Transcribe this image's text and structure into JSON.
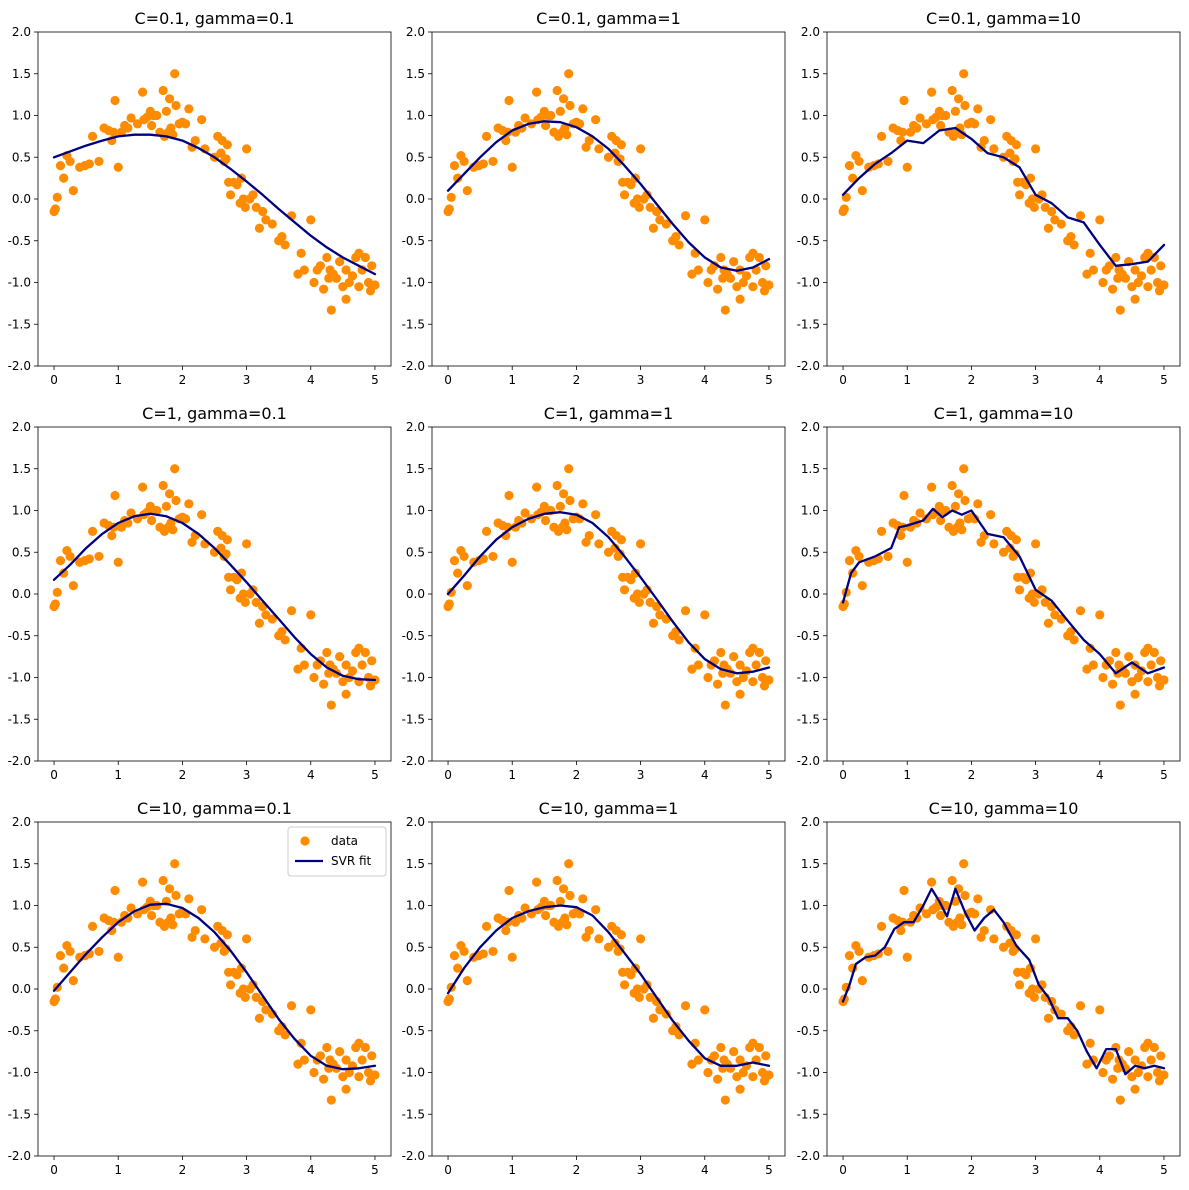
{
  "colors": {
    "data": "#ff8c00",
    "fit": "#000080",
    "axis": "#000000"
  },
  "legend": {
    "data_label": "data",
    "fit_label": "SVR fit",
    "placement": "top-right",
    "panel": 6
  },
  "chart_data": [
    {
      "type": "scatter+line",
      "title": "C=0.1, gamma=0.1",
      "xlim": [
        -0.25,
        5.25
      ],
      "ylim": [
        -2,
        2
      ],
      "xticks": [
        0,
        1,
        2,
        3,
        4,
        5
      ],
      "yticks": [
        -2.0,
        -1.5,
        -1.0,
        -0.5,
        0.0,
        0.5,
        1.0,
        1.5,
        2.0
      ],
      "fit": {
        "x": [
          0,
          0.25,
          0.5,
          0.75,
          1.0,
          1.25,
          1.5,
          1.75,
          2.0,
          2.25,
          2.5,
          2.75,
          3.0,
          3.25,
          3.5,
          3.75,
          4.0,
          4.25,
          4.5,
          4.75,
          5.0
        ],
        "y": [
          0.5,
          0.57,
          0.64,
          0.7,
          0.75,
          0.77,
          0.77,
          0.75,
          0.7,
          0.61,
          0.5,
          0.36,
          0.21,
          0.05,
          -0.12,
          -0.28,
          -0.44,
          -0.58,
          -0.7,
          -0.8,
          -0.9
        ]
      }
    },
    {
      "type": "scatter+line",
      "title": "C=0.1, gamma=1",
      "xlim": [
        -0.25,
        5.25
      ],
      "ylim": [
        -2,
        2
      ],
      "xticks": [
        0,
        1,
        2,
        3,
        4,
        5
      ],
      "yticks": [
        -2.0,
        -1.5,
        -1.0,
        -0.5,
        0.0,
        0.5,
        1.0,
        1.5,
        2.0
      ],
      "fit": {
        "x": [
          0,
          0.25,
          0.5,
          0.75,
          1.0,
          1.25,
          1.5,
          1.75,
          2.0,
          2.25,
          2.5,
          2.75,
          3.0,
          3.25,
          3.5,
          3.75,
          4.0,
          4.25,
          4.5,
          4.75,
          5.0
        ],
        "y": [
          0.1,
          0.3,
          0.5,
          0.68,
          0.82,
          0.9,
          0.93,
          0.92,
          0.86,
          0.75,
          0.6,
          0.4,
          0.18,
          -0.06,
          -0.3,
          -0.52,
          -0.7,
          -0.82,
          -0.86,
          -0.82,
          -0.72
        ]
      }
    },
    {
      "type": "scatter+line",
      "title": "C=0.1, gamma=10",
      "xlim": [
        -0.25,
        5.25
      ],
      "ylim": [
        -2,
        2
      ],
      "xticks": [
        0,
        1,
        2,
        3,
        4,
        5
      ],
      "yticks": [
        -2.0,
        -1.5,
        -1.0,
        -0.5,
        0.0,
        0.5,
        1.0,
        1.5,
        2.0
      ],
      "fit": {
        "x": [
          0,
          0.25,
          0.5,
          0.75,
          1.0,
          1.25,
          1.5,
          1.75,
          2.0,
          2.25,
          2.5,
          2.75,
          3.0,
          3.25,
          3.5,
          3.75,
          4.0,
          4.25,
          4.5,
          4.75,
          5.0
        ],
        "y": [
          0.05,
          0.25,
          0.42,
          0.55,
          0.7,
          0.67,
          0.82,
          0.85,
          0.72,
          0.55,
          0.5,
          0.38,
          0.05,
          -0.05,
          -0.22,
          -0.28,
          -0.55,
          -0.8,
          -0.78,
          -0.75,
          -0.55
        ]
      }
    },
    {
      "type": "scatter+line",
      "title": "C=1, gamma=0.1",
      "xlim": [
        -0.25,
        5.25
      ],
      "ylim": [
        -2,
        2
      ],
      "xticks": [
        0,
        1,
        2,
        3,
        4,
        5
      ],
      "yticks": [
        -2.0,
        -1.5,
        -1.0,
        -0.5,
        0.0,
        0.5,
        1.0,
        1.5,
        2.0
      ],
      "fit": {
        "x": [
          0,
          0.25,
          0.5,
          0.75,
          1.0,
          1.25,
          1.5,
          1.75,
          2.0,
          2.25,
          2.5,
          2.75,
          3.0,
          3.25,
          3.5,
          3.75,
          4.0,
          4.25,
          4.5,
          4.75,
          5.0
        ],
        "y": [
          0.17,
          0.35,
          0.55,
          0.72,
          0.85,
          0.93,
          0.96,
          0.93,
          0.85,
          0.72,
          0.55,
          0.35,
          0.14,
          -0.08,
          -0.3,
          -0.52,
          -0.72,
          -0.88,
          -0.98,
          -1.02,
          -1.03
        ]
      }
    },
    {
      "type": "scatter+line",
      "title": "C=1, gamma=1",
      "xlim": [
        -0.25,
        5.25
      ],
      "ylim": [
        -2,
        2
      ],
      "xticks": [
        0,
        1,
        2,
        3,
        4,
        5
      ],
      "yticks": [
        -2.0,
        -1.5,
        -1.0,
        -0.5,
        0.0,
        0.5,
        1.0,
        1.5,
        2.0
      ],
      "fit": {
        "x": [
          0,
          0.25,
          0.5,
          0.75,
          1.0,
          1.25,
          1.5,
          1.75,
          2.0,
          2.25,
          2.5,
          2.75,
          3.0,
          3.25,
          3.5,
          3.75,
          4.0,
          4.25,
          4.5,
          4.75,
          5.0
        ],
        "y": [
          0.0,
          0.22,
          0.45,
          0.65,
          0.8,
          0.9,
          0.96,
          0.98,
          0.95,
          0.85,
          0.68,
          0.45,
          0.2,
          -0.06,
          -0.33,
          -0.58,
          -0.78,
          -0.9,
          -0.95,
          -0.93,
          -0.88
        ]
      }
    },
    {
      "type": "scatter+line",
      "title": "C=1, gamma=10",
      "xlim": [
        -0.25,
        5.25
      ],
      "ylim": [
        -2,
        2
      ],
      "xticks": [
        0,
        1,
        2,
        3,
        4,
        5
      ],
      "yticks": [
        -2.0,
        -1.5,
        -1.0,
        -0.5,
        0.0,
        0.5,
        1.0,
        1.5,
        2.0
      ],
      "fit": {
        "x": [
          0,
          0.125,
          0.25,
          0.5,
          0.75,
          0.875,
          1.0,
          1.25,
          1.4,
          1.55,
          1.7,
          1.85,
          2.0,
          2.25,
          2.5,
          2.75,
          3.0,
          3.25,
          3.5,
          3.75,
          4.0,
          4.25,
          4.5,
          4.75,
          5.0
        ],
        "y": [
          -0.1,
          0.25,
          0.38,
          0.45,
          0.55,
          0.8,
          0.82,
          0.88,
          1.02,
          0.92,
          1.0,
          0.95,
          1.0,
          0.72,
          0.68,
          0.45,
          0.05,
          -0.08,
          -0.32,
          -0.55,
          -0.72,
          -0.95,
          -0.82,
          -0.95,
          -0.88
        ]
      }
    },
    {
      "type": "scatter+line",
      "title": "C=10, gamma=0.1",
      "xlim": [
        -0.25,
        5.25
      ],
      "ylim": [
        -2,
        2
      ],
      "xticks": [
        0,
        1,
        2,
        3,
        4,
        5
      ],
      "yticks": [
        -2.0,
        -1.5,
        -1.0,
        -0.5,
        0.0,
        0.5,
        1.0,
        1.5,
        2.0
      ],
      "fit": {
        "x": [
          0,
          0.25,
          0.5,
          0.75,
          1.0,
          1.25,
          1.5,
          1.75,
          2.0,
          2.25,
          2.5,
          2.75,
          3.0,
          3.25,
          3.5,
          3.75,
          4.0,
          4.25,
          4.5,
          4.75,
          5.0
        ],
        "y": [
          -0.02,
          0.2,
          0.42,
          0.62,
          0.8,
          0.93,
          1.01,
          1.02,
          0.97,
          0.85,
          0.68,
          0.46,
          0.2,
          -0.08,
          -0.36,
          -0.6,
          -0.8,
          -0.92,
          -0.96,
          -0.95,
          -0.92
        ]
      }
    },
    {
      "type": "scatter+line",
      "title": "C=10, gamma=1",
      "xlim": [
        -0.25,
        5.25
      ],
      "ylim": [
        -2,
        2
      ],
      "xticks": [
        0,
        1,
        2,
        3,
        4,
        5
      ],
      "yticks": [
        -2.0,
        -1.5,
        -1.0,
        -0.5,
        0.0,
        0.5,
        1.0,
        1.5,
        2.0
      ],
      "fit": {
        "x": [
          0,
          0.25,
          0.5,
          0.75,
          1.0,
          1.25,
          1.5,
          1.75,
          2.0,
          2.25,
          2.5,
          2.75,
          3.0,
          3.25,
          3.5,
          3.75,
          4.0,
          4.25,
          4.5,
          4.75,
          5.0
        ],
        "y": [
          -0.05,
          0.25,
          0.5,
          0.7,
          0.85,
          0.93,
          0.98,
          1.0,
          0.98,
          0.88,
          0.68,
          0.43,
          0.18,
          -0.1,
          -0.38,
          -0.62,
          -0.83,
          -0.92,
          -0.92,
          -0.88,
          -0.92
        ]
      }
    },
    {
      "type": "scatter+line",
      "title": "C=10, gamma=10",
      "xlim": [
        -0.25,
        5.25
      ],
      "ylim": [
        -2,
        2
      ],
      "xticks": [
        0,
        1,
        2,
        3,
        4,
        5
      ],
      "yticks": [
        -2.0,
        -1.5,
        -1.0,
        -0.5,
        0.0,
        0.5,
        1.0,
        1.5,
        2.0
      ],
      "fit": {
        "x": [
          0,
          0.1,
          0.2,
          0.35,
          0.5,
          0.65,
          0.8,
          0.95,
          1.1,
          1.25,
          1.38,
          1.5,
          1.62,
          1.75,
          1.9,
          2.05,
          2.2,
          2.35,
          2.5,
          2.7,
          2.9,
          3.05,
          3.2,
          3.35,
          3.5,
          3.65,
          3.8,
          3.95,
          4.1,
          4.25,
          4.4,
          4.55,
          4.7,
          4.85,
          5.0
        ],
        "y": [
          -0.15,
          0.05,
          0.3,
          0.38,
          0.4,
          0.5,
          0.72,
          0.8,
          0.8,
          1.0,
          1.2,
          1.05,
          0.87,
          1.2,
          0.92,
          0.7,
          0.85,
          0.95,
          0.8,
          0.52,
          0.35,
          0.05,
          -0.1,
          -0.35,
          -0.35,
          -0.5,
          -0.75,
          -0.95,
          -0.72,
          -0.72,
          -1.02,
          -0.92,
          -0.95,
          -0.92,
          -0.95
        ]
      }
    }
  ],
  "shared_scatter": {
    "x": [
      0.0,
      0.02,
      0.05,
      0.1,
      0.15,
      0.2,
      0.25,
      0.3,
      0.4,
      0.48,
      0.55,
      0.6,
      0.7,
      0.78,
      0.85,
      0.9,
      0.93,
      0.95,
      1.0,
      1.05,
      1.1,
      1.15,
      1.2,
      1.3,
      1.38,
      1.4,
      1.45,
      1.5,
      1.52,
      1.55,
      1.6,
      1.65,
      1.7,
      1.72,
      1.75,
      1.78,
      1.8,
      1.82,
      1.85,
      1.88,
      1.9,
      1.95,
      2.0,
      2.05,
      2.1,
      2.15,
      2.2,
      2.3,
      2.35,
      2.5,
      2.55,
      2.6,
      2.62,
      2.65,
      2.68,
      2.7,
      2.72,
      2.75,
      2.8,
      2.85,
      2.9,
      2.92,
      2.95,
      2.98,
      3.0,
      3.05,
      3.1,
      3.15,
      3.2,
      3.25,
      3.3,
      3.4,
      3.5,
      3.55,
      3.6,
      3.7,
      3.8,
      3.85,
      3.9,
      4.0,
      4.05,
      4.1,
      4.15,
      4.2,
      4.25,
      4.28,
      4.3,
      4.32,
      4.35,
      4.4,
      4.45,
      4.5,
      4.55,
      4.6,
      4.65,
      4.7,
      4.75,
      4.8,
      4.85,
      4.9,
      4.93,
      4.95,
      5.0,
      4.75,
      4.55
    ],
    "y": [
      -0.15,
      -0.12,
      0.02,
      0.4,
      0.25,
      0.52,
      0.45,
      0.1,
      0.38,
      0.4,
      0.42,
      0.75,
      0.45,
      0.85,
      0.82,
      0.7,
      0.8,
      1.18,
      0.38,
      0.8,
      0.88,
      0.85,
      0.97,
      0.9,
      1.28,
      0.95,
      0.98,
      1.05,
      0.88,
      1.0,
      1.0,
      0.8,
      1.3,
      0.75,
      1.05,
      0.8,
      1.2,
      0.85,
      0.77,
      1.5,
      1.12,
      0.9,
      0.92,
      0.9,
      1.08,
      0.62,
      0.7,
      0.95,
      0.6,
      0.5,
      0.75,
      0.55,
      0.7,
      0.45,
      0.48,
      0.65,
      0.2,
      0.05,
      0.2,
      0.17,
      -0.05,
      0.25,
      0.0,
      -0.1,
      0.6,
      0.0,
      0.05,
      -0.1,
      -0.35,
      -0.15,
      -0.25,
      -0.3,
      -0.5,
      -0.45,
      -0.55,
      -0.2,
      -0.9,
      -0.65,
      -0.85,
      -0.25,
      -1.0,
      -0.85,
      -0.8,
      -1.08,
      -0.7,
      -0.95,
      -0.85,
      -1.33,
      -0.9,
      -0.95,
      -0.75,
      -1.05,
      -1.2,
      -1.0,
      -0.92,
      -0.7,
      -1.05,
      -0.85,
      -0.7,
      -1.0,
      -1.1,
      -0.8,
      -1.03,
      -0.65,
      -0.85
    ]
  }
}
